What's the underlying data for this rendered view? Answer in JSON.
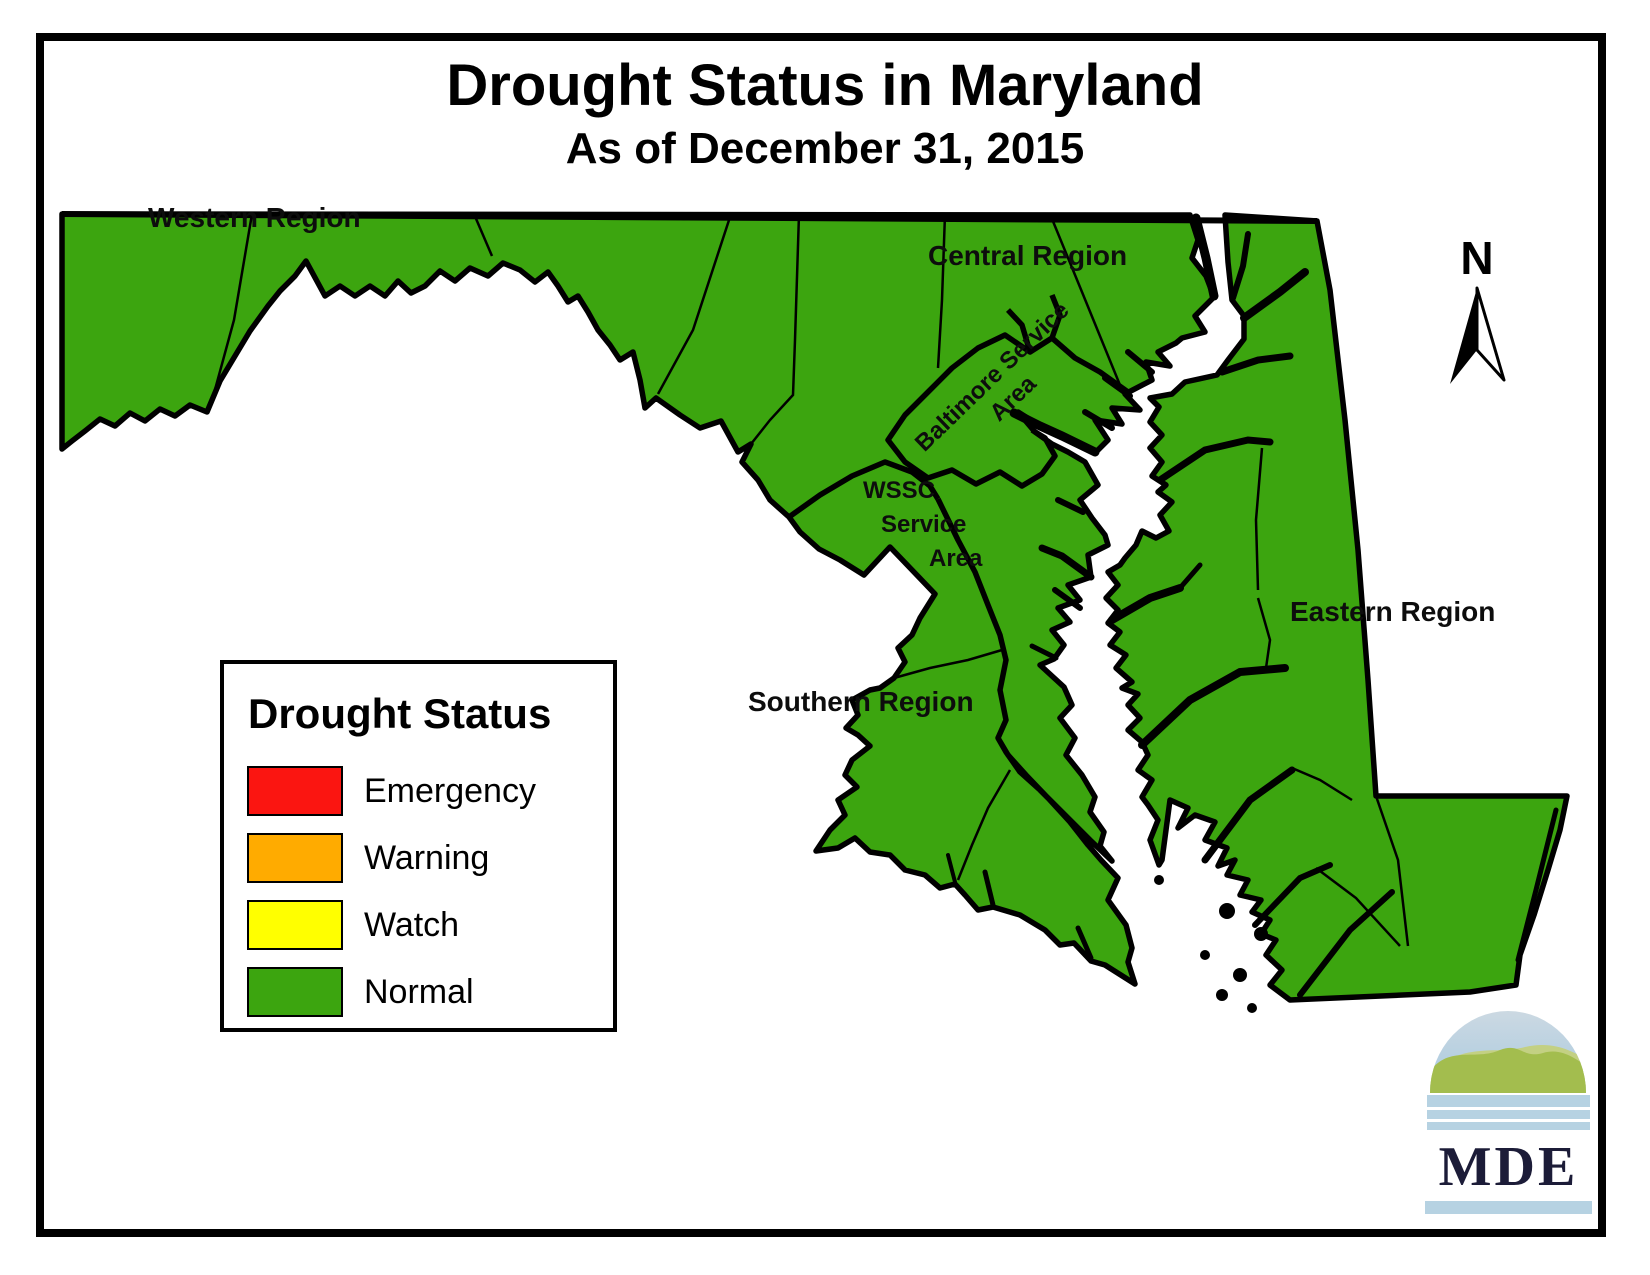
{
  "title": {
    "main": "Drought Status in Maryland",
    "subtitle": "As of December 31, 2015"
  },
  "map_labels": {
    "western": "Western Region",
    "central": "Central Region",
    "baltimore_line1": "Baltimore Service",
    "baltimore_line2": "Area",
    "wssc_line1": "WSSC",
    "wssc_line2": "Service",
    "wssc_line3": "Area",
    "southern": "Southern Region",
    "eastern": "Eastern Region"
  },
  "legend": {
    "title": "Drought Status",
    "items": [
      {
        "label": "Emergency",
        "color": "#fb1511"
      },
      {
        "label": "Warning",
        "color": "#ffab00"
      },
      {
        "label": "Watch",
        "color": "#ffff00"
      },
      {
        "label": "Normal",
        "color": "#3ca50f"
      }
    ]
  },
  "north_arrow": {
    "label": "N"
  },
  "logo": {
    "text": "MDE"
  },
  "map": {
    "state": "Maryland",
    "status": "Normal",
    "status_color": "#3ca50f"
  }
}
